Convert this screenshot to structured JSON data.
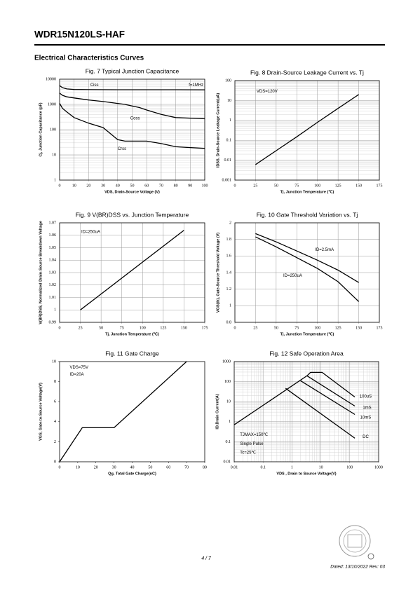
{
  "header": {
    "title": "WDR15N120LS-HAF",
    "section": "Electrical Characteristics Curves"
  },
  "chart_data": [
    {
      "type": "line",
      "title": "Fig. 7 Typical Junction Capacitance",
      "x_label": "VDS, Drain-Source Voltage (V)",
      "y_label": "Cj, Junction Capacitance (pF)",
      "xlim": [
        0,
        100
      ],
      "xticks": [
        0,
        10,
        20,
        30,
        40,
        50,
        60,
        70,
        80,
        90,
        100
      ],
      "ylim": [
        1,
        10000
      ],
      "yticks": [
        1,
        10,
        100,
        1000,
        10000
      ],
      "log_y": true,
      "grid": true,
      "color": "#000000",
      "annotations": [
        "f=1MHz"
      ],
      "series": [
        {
          "name": "Ciss",
          "x": [
            0,
            2,
            5,
            10,
            20,
            40,
            60,
            80,
            100
          ],
          "values": [
            5600,
            4600,
            4100,
            3900,
            3850,
            3800,
            3800,
            3800,
            3750
          ]
        },
        {
          "name": "Coss",
          "x": [
            0,
            2,
            5,
            10,
            20,
            30,
            45,
            55,
            60,
            70,
            80,
            100
          ],
          "values": [
            2800,
            2300,
            2000,
            1800,
            1500,
            1300,
            1000,
            750,
            600,
            400,
            300,
            270
          ]
        },
        {
          "name": "Crss",
          "x": [
            0,
            2,
            5,
            10,
            20,
            30,
            35,
            40,
            45,
            50,
            60,
            70,
            80,
            100
          ],
          "values": [
            1100,
            700,
            500,
            300,
            180,
            120,
            70,
            40,
            35,
            35,
            35,
            28,
            21,
            18
          ]
        }
      ]
    },
    {
      "type": "line",
      "title": "Fig. 8 Drain-Source Leakage Current vs. Tj",
      "x_label": "Tj, Junction Temperature (℃)",
      "y_label": "IDSS, Drain-Source Leakage Current(uA)",
      "xlim": [
        0,
        175
      ],
      "xticks": [
        0,
        25,
        50,
        75,
        100,
        125,
        150,
        175
      ],
      "ylim": [
        0.001,
        100
      ],
      "yticks": [
        0.001,
        0.01,
        0.1,
        1,
        10,
        100
      ],
      "log_y": true,
      "grid": true,
      "color": "#000000",
      "annotations": [
        "VDS=120V"
      ],
      "x": [
        25,
        50,
        75,
        100,
        125,
        150
      ],
      "values": [
        0.006,
        0.03,
        0.15,
        0.8,
        4,
        20
      ]
    },
    {
      "type": "line",
      "title": "Fig. 9 V(BR)DSS vs. Junction Temperature",
      "x_label": "Tj, Junction Temperature (℃)",
      "y_label": "V(BR)DSS, Normalized Drain-Source Breakdown Voltage",
      "xlim": [
        0,
        175
      ],
      "xticks": [
        0,
        25,
        50,
        75,
        100,
        125,
        150,
        175
      ],
      "ylim": [
        0.99,
        1.07
      ],
      "yticks": [
        0.99,
        1,
        1.01,
        1.02,
        1.03,
        1.04,
        1.05,
        1.06,
        1.07
      ],
      "grid": true,
      "color": "#000000",
      "annotations": [
        "ID=250uA"
      ],
      "x": [
        25,
        150
      ],
      "values": [
        1,
        1.064
      ]
    },
    {
      "type": "line",
      "title": "Fig. 10 Gate Threshold Variation vs. Tj",
      "x_label": "Tj, Junction Temperature (℃)",
      "y_label": "VGS(th), Gate-Source Threshold Voltage (V)",
      "xlim": [
        0,
        175
      ],
      "xticks": [
        0,
        25,
        50,
        75,
        100,
        125,
        150,
        175
      ],
      "ylim": [
        0.8,
        2
      ],
      "yticks": [
        0.8,
        1,
        1.2,
        1.4,
        1.6,
        1.8,
        2
      ],
      "grid": true,
      "color": "#000000",
      "series": [
        {
          "name": "ID=2.5mA",
          "x": [
            25,
            50,
            75,
            100,
            125,
            150
          ],
          "values": [
            1.87,
            1.77,
            1.66,
            1.55,
            1.43,
            1.28
          ]
        },
        {
          "name": "ID=250uA",
          "x": [
            25,
            50,
            75,
            100,
            125,
            150
          ],
          "values": [
            1.83,
            1.71,
            1.58,
            1.45,
            1.29,
            1.05
          ]
        }
      ]
    },
    {
      "type": "line",
      "title": "Fig. 11 Gate Charge",
      "x_label": "Qg, Total Gate Charge(nC)",
      "y_label": "VGS, Gate-to-Source Voltage(V)",
      "xlim": [
        0,
        80
      ],
      "xticks": [
        0,
        10,
        20,
        30,
        40,
        50,
        60,
        70,
        80
      ],
      "ylim": [
        0,
        10
      ],
      "yticks": [
        0,
        2,
        4,
        6,
        8,
        10
      ],
      "grid": false,
      "color": "#000000",
      "annotations": [
        "VDS=75V",
        "ID=20A"
      ],
      "x": [
        0,
        12.5,
        30,
        70
      ],
      "values": [
        0,
        3.4,
        3.4,
        10
      ]
    },
    {
      "type": "line",
      "title": "Fig. 12 Safe Operation Area",
      "x_label": "VDS , Drain to Source Voltage(V)",
      "y_label": "ID,Drain Current(A)",
      "xlim": [
        0.01,
        1000
      ],
      "xticks": [
        0.01,
        0.1,
        1,
        10,
        100,
        1000
      ],
      "ylim": [
        0.01,
        1000
      ],
      "yticks": [
        0.01,
        0.1,
        1,
        10,
        100,
        1000
      ],
      "log_x": true,
      "log_y": true,
      "grid": true,
      "color": "#000000",
      "annotations": [
        "TJMAX=150℃",
        "Single Pulse",
        "Tc=25℃"
      ],
      "series": [
        {
          "name": "100uS",
          "x": [
            0.01,
            3.3,
            4.4,
            11,
            150
          ],
          "values": [
            0.7,
            195,
            290,
            290,
            17
          ]
        },
        {
          "name": "1mS",
          "x": [
            3.3,
            150
          ],
          "values": [
            195,
            6
          ]
        },
        {
          "name": "10mS",
          "x": [
            2,
            150
          ],
          "values": [
            110,
            2.3
          ]
        },
        {
          "name": "DC",
          "x": [
            0.6,
            150
          ],
          "values": [
            46,
            0.15
          ]
        }
      ]
    }
  ],
  "footer": {
    "page": "4 / 7",
    "date": "Dated: 13/10/2022 Rev: 03"
  }
}
